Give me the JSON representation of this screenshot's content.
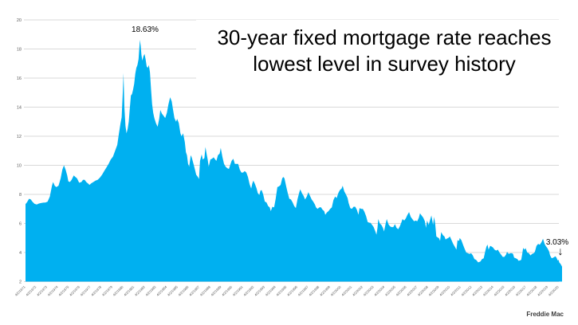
{
  "page": {
    "background": "#ffffff"
  },
  "title": {
    "line1": "30-year fixed mortgage rate reaches",
    "line2": "lowest level in survey history"
  },
  "annotations": {
    "peak": "18.63%",
    "latest": "3.03%",
    "arrow_glyph": "↓"
  },
  "source": {
    "label": "Freddie Mac"
  },
  "chart_data": {
    "type": "area",
    "title": "30-year fixed mortgage rate reaches lowest level in survey history",
    "series_name": "30-year fixed mortgage rate (%)",
    "fill_color": "#00b0f0",
    "gridline_color": "#d9d9d9",
    "tick_label_color": "#595959",
    "grid": "horizontal",
    "legend": "none",
    "ylim": [
      2,
      20
    ],
    "y_ticks": [
      20,
      18,
      16,
      14,
      12,
      10,
      8,
      6,
      4,
      2
    ],
    "xlim": [
      1971.25,
      2020.6
    ],
    "x_tick_labels": [
      "4/2/1971",
      "4/2/1972",
      "4/2/1973",
      "4/2/1974",
      "4/2/1975",
      "4/2/1976",
      "4/2/1977",
      "4/2/1978",
      "4/2/1979",
      "4/2/1980",
      "4/2/1981",
      "4/2/1982",
      "4/2/1983",
      "4/2/1984",
      "4/2/1985",
      "4/2/1986",
      "4/2/1987",
      "4/2/1988",
      "4/2/1989",
      "4/2/1990",
      "4/2/1991",
      "4/2/1992",
      "4/2/1993",
      "4/2/1994",
      "4/2/1995",
      "4/2/1996",
      "4/2/1997",
      "4/2/1998",
      "4/2/1999",
      "4/2/2000",
      "4/2/2001",
      "4/2/2002",
      "4/2/2003",
      "4/2/2004",
      "4/2/2005",
      "4/2/2006",
      "4/2/2007",
      "4/2/2008",
      "4/2/2009",
      "4/2/2010",
      "4/2/2011",
      "4/2/2012",
      "4/2/2013",
      "4/2/2014",
      "4/2/2015",
      "4/2/2016",
      "4/2/2017",
      "4/2/2018",
      "4/2/2019",
      "4/2/2020"
    ],
    "annotations": [
      {
        "text": "18.63%",
        "x": 1981.78,
        "y": 18.63
      },
      {
        "text": "3.03%",
        "x": 2020.55,
        "y": 3.03
      }
    ],
    "points": [
      [
        1971.27,
        7.33
      ],
      [
        1971.4,
        7.45
      ],
      [
        1971.6,
        7.7
      ],
      [
        1971.75,
        7.65
      ],
      [
        1971.9,
        7.5
      ],
      [
        1972.1,
        7.35
      ],
      [
        1972.3,
        7.3
      ],
      [
        1972.5,
        7.37
      ],
      [
        1972.7,
        7.4
      ],
      [
        1972.9,
        7.43
      ],
      [
        1973.1,
        7.44
      ],
      [
        1973.3,
        7.5
      ],
      [
        1973.5,
        7.85
      ],
      [
        1973.7,
        8.6
      ],
      [
        1973.8,
        8.85
      ],
      [
        1973.95,
        8.6
      ],
      [
        1974.1,
        8.5
      ],
      [
        1974.3,
        8.6
      ],
      [
        1974.5,
        9.1
      ],
      [
        1974.65,
        9.7
      ],
      [
        1974.8,
        10.0
      ],
      [
        1974.95,
        9.7
      ],
      [
        1975.1,
        9.3
      ],
      [
        1975.2,
        8.9
      ],
      [
        1975.35,
        8.85
      ],
      [
        1975.5,
        9.0
      ],
      [
        1975.7,
        9.3
      ],
      [
        1975.85,
        9.2
      ],
      [
        1976.0,
        9.1
      ],
      [
        1976.2,
        8.8
      ],
      [
        1976.4,
        8.85
      ],
      [
        1976.55,
        9.0
      ],
      [
        1976.7,
        9.0
      ],
      [
        1976.85,
        8.85
      ],
      [
        1977.0,
        8.75
      ],
      [
        1977.15,
        8.65
      ],
      [
        1977.3,
        8.75
      ],
      [
        1977.5,
        8.85
      ],
      [
        1977.7,
        8.95
      ],
      [
        1977.9,
        9.0
      ],
      [
        1978.1,
        9.15
      ],
      [
        1978.3,
        9.35
      ],
      [
        1978.5,
        9.6
      ],
      [
        1978.7,
        9.85
      ],
      [
        1978.9,
        10.1
      ],
      [
        1979.1,
        10.4
      ],
      [
        1979.3,
        10.6
      ],
      [
        1979.5,
        11.0
      ],
      [
        1979.7,
        11.4
      ],
      [
        1979.85,
        12.2
      ],
      [
        1980.0,
        12.9
      ],
      [
        1980.1,
        13.3
      ],
      [
        1980.2,
        15.0
      ],
      [
        1980.27,
        16.35
      ],
      [
        1980.35,
        14.0
      ],
      [
        1980.45,
        12.7
      ],
      [
        1980.55,
        12.2
      ],
      [
        1980.65,
        12.5
      ],
      [
        1980.75,
        13.0
      ],
      [
        1980.85,
        13.9
      ],
      [
        1980.95,
        14.8
      ],
      [
        1981.05,
        14.9
      ],
      [
        1981.15,
        15.2
      ],
      [
        1981.25,
        15.6
      ],
      [
        1981.35,
        16.3
      ],
      [
        1981.45,
        16.7
      ],
      [
        1981.55,
        16.9
      ],
      [
        1981.65,
        17.3
      ],
      [
        1981.73,
        18.1
      ],
      [
        1981.78,
        18.63
      ],
      [
        1981.85,
        18.2
      ],
      [
        1981.92,
        17.6
      ],
      [
        1982.0,
        17.2
      ],
      [
        1982.1,
        17.5
      ],
      [
        1982.2,
        17.66
      ],
      [
        1982.3,
        17.3
      ],
      [
        1982.4,
        16.8
      ],
      [
        1982.5,
        16.7
      ],
      [
        1982.6,
        16.9
      ],
      [
        1982.7,
        16.4
      ],
      [
        1982.8,
        15.2
      ],
      [
        1982.9,
        14.2
      ],
      [
        1983.0,
        13.6
      ],
      [
        1983.1,
        13.25
      ],
      [
        1983.25,
        12.9
      ],
      [
        1983.4,
        12.65
      ],
      [
        1983.55,
        13.2
      ],
      [
        1983.65,
        13.8
      ],
      [
        1983.8,
        13.55
      ],
      [
        1983.95,
        13.4
      ],
      [
        1984.1,
        13.25
      ],
      [
        1984.25,
        13.6
      ],
      [
        1984.4,
        14.2
      ],
      [
        1984.55,
        14.68
      ],
      [
        1984.7,
        14.4
      ],
      [
        1984.8,
        13.9
      ],
      [
        1984.95,
        13.25
      ],
      [
        1985.1,
        13.0
      ],
      [
        1985.2,
        13.2
      ],
      [
        1985.35,
        12.9
      ],
      [
        1985.5,
        12.2
      ],
      [
        1985.6,
        12.0
      ],
      [
        1985.75,
        12.2
      ],
      [
        1985.9,
        11.6
      ],
      [
        1986.0,
        10.9
      ],
      [
        1986.1,
        10.7
      ],
      [
        1986.2,
        10.1
      ],
      [
        1986.3,
        9.9
      ],
      [
        1986.45,
        10.7
      ],
      [
        1986.55,
        10.5
      ],
      [
        1986.7,
        10.1
      ],
      [
        1986.8,
        9.8
      ],
      [
        1986.95,
        9.35
      ],
      [
        1987.1,
        9.2
      ],
      [
        1987.2,
        9.05
      ],
      [
        1987.3,
        10.3
      ],
      [
        1987.45,
        10.75
      ],
      [
        1987.55,
        10.4
      ],
      [
        1987.7,
        10.5
      ],
      [
        1987.8,
        11.26
      ],
      [
        1987.9,
        10.8
      ],
      [
        1988.0,
        10.4
      ],
      [
        1988.1,
        9.9
      ],
      [
        1988.25,
        10.4
      ],
      [
        1988.4,
        10.45
      ],
      [
        1988.55,
        10.55
      ],
      [
        1988.7,
        10.4
      ],
      [
        1988.8,
        10.3
      ],
      [
        1988.95,
        10.7
      ],
      [
        1989.1,
        10.8
      ],
      [
        1989.2,
        11.2
      ],
      [
        1989.35,
        10.6
      ],
      [
        1989.5,
        10.1
      ],
      [
        1989.65,
        9.9
      ],
      [
        1989.8,
        9.8
      ],
      [
        1989.95,
        9.75
      ],
      [
        1990.1,
        10.1
      ],
      [
        1990.2,
        10.3
      ],
      [
        1990.35,
        10.45
      ],
      [
        1990.5,
        10.1
      ],
      [
        1990.65,
        10.1
      ],
      [
        1990.8,
        10.1
      ],
      [
        1990.95,
        9.7
      ],
      [
        1991.1,
        9.5
      ],
      [
        1991.25,
        9.5
      ],
      [
        1991.4,
        9.6
      ],
      [
        1991.55,
        9.5
      ],
      [
        1991.7,
        9.2
      ],
      [
        1991.85,
        8.7
      ],
      [
        1992.0,
        8.4
      ],
      [
        1992.1,
        8.75
      ],
      [
        1992.2,
        8.95
      ],
      [
        1992.35,
        8.7
      ],
      [
        1992.5,
        8.4
      ],
      [
        1992.6,
        8.1
      ],
      [
        1992.75,
        7.95
      ],
      [
        1992.85,
        8.25
      ],
      [
        1992.95,
        8.3
      ],
      [
        1993.1,
        8.0
      ],
      [
        1993.25,
        7.5
      ],
      [
        1993.4,
        7.45
      ],
      [
        1993.55,
        7.2
      ],
      [
        1993.7,
        7.1
      ],
      [
        1993.8,
        6.85
      ],
      [
        1993.95,
        7.15
      ],
      [
        1994.1,
        7.1
      ],
      [
        1994.25,
        7.7
      ],
      [
        1994.4,
        8.5
      ],
      [
        1994.55,
        8.55
      ],
      [
        1994.7,
        8.65
      ],
      [
        1994.85,
        9.1
      ],
      [
        1994.95,
        9.2
      ],
      [
        1995.05,
        9.1
      ],
      [
        1995.2,
        8.6
      ],
      [
        1995.35,
        8.1
      ],
      [
        1995.5,
        7.7
      ],
      [
        1995.65,
        7.65
      ],
      [
        1995.8,
        7.45
      ],
      [
        1995.95,
        7.2
      ],
      [
        1996.1,
        7.05
      ],
      [
        1996.25,
        7.65
      ],
      [
        1996.4,
        8.1
      ],
      [
        1996.5,
        8.35
      ],
      [
        1996.65,
        8.1
      ],
      [
        1996.8,
        7.9
      ],
      [
        1996.95,
        7.65
      ],
      [
        1997.1,
        7.85
      ],
      [
        1997.25,
        8.15
      ],
      [
        1997.4,
        7.9
      ],
      [
        1997.55,
        7.65
      ],
      [
        1997.7,
        7.5
      ],
      [
        1997.85,
        7.3
      ],
      [
        1997.95,
        7.1
      ],
      [
        1998.1,
        7.0
      ],
      [
        1998.25,
        7.1
      ],
      [
        1998.4,
        7.12
      ],
      [
        1998.55,
        6.95
      ],
      [
        1998.7,
        6.85
      ],
      [
        1998.8,
        6.6
      ],
      [
        1998.95,
        6.75
      ],
      [
        1999.1,
        6.85
      ],
      [
        1999.25,
        7.0
      ],
      [
        1999.4,
        7.1
      ],
      [
        1999.55,
        7.6
      ],
      [
        1999.7,
        7.85
      ],
      [
        1999.85,
        7.75
      ],
      [
        2000.0,
        8.1
      ],
      [
        2000.15,
        8.3
      ],
      [
        2000.3,
        8.4
      ],
      [
        2000.4,
        8.6
      ],
      [
        2000.55,
        8.2
      ],
      [
        2000.7,
        8.0
      ],
      [
        2000.85,
        7.75
      ],
      [
        2000.95,
        7.4
      ],
      [
        2001.1,
        7.05
      ],
      [
        2001.25,
        7.0
      ],
      [
        2001.4,
        7.15
      ],
      [
        2001.55,
        7.15
      ],
      [
        2001.7,
        6.95
      ],
      [
        2001.85,
        6.6
      ],
      [
        2001.95,
        7.05
      ],
      [
        2002.1,
        7.0
      ],
      [
        2002.25,
        7.0
      ],
      [
        2002.4,
        6.8
      ],
      [
        2002.55,
        6.5
      ],
      [
        2002.7,
        6.1
      ],
      [
        2002.85,
        6.05
      ],
      [
        2002.95,
        6.05
      ],
      [
        2003.1,
        5.9
      ],
      [
        2003.25,
        5.75
      ],
      [
        2003.4,
        5.45
      ],
      [
        2003.5,
        5.23
      ],
      [
        2003.6,
        5.7
      ],
      [
        2003.67,
        6.3
      ],
      [
        2003.8,
        6.0
      ],
      [
        2003.95,
        5.9
      ],
      [
        2004.1,
        5.7
      ],
      [
        2004.2,
        5.45
      ],
      [
        2004.35,
        6.0
      ],
      [
        2004.45,
        6.3
      ],
      [
        2004.6,
        5.95
      ],
      [
        2004.75,
        5.8
      ],
      [
        2004.9,
        5.75
      ],
      [
        2005.05,
        5.75
      ],
      [
        2005.2,
        5.95
      ],
      [
        2005.35,
        5.7
      ],
      [
        2005.5,
        5.6
      ],
      [
        2005.65,
        5.8
      ],
      [
        2005.8,
        6.1
      ],
      [
        2005.9,
        6.3
      ],
      [
        2006.05,
        6.2
      ],
      [
        2006.2,
        6.35
      ],
      [
        2006.35,
        6.6
      ],
      [
        2006.5,
        6.78
      ],
      [
        2006.65,
        6.45
      ],
      [
        2006.8,
        6.3
      ],
      [
        2006.95,
        6.15
      ],
      [
        2007.1,
        6.2
      ],
      [
        2007.25,
        6.15
      ],
      [
        2007.4,
        6.4
      ],
      [
        2007.5,
        6.7
      ],
      [
        2007.65,
        6.55
      ],
      [
        2007.8,
        6.4
      ],
      [
        2007.95,
        6.15
      ],
      [
        2008.05,
        5.7
      ],
      [
        2008.15,
        6.2
      ],
      [
        2008.3,
        5.9
      ],
      [
        2008.45,
        6.3
      ],
      [
        2008.55,
        6.55
      ],
      [
        2008.7,
        5.9
      ],
      [
        2008.8,
        6.45
      ],
      [
        2008.9,
        5.95
      ],
      [
        2009.0,
        5.1
      ],
      [
        2009.1,
        5.05
      ],
      [
        2009.25,
        4.98
      ],
      [
        2009.35,
        4.8
      ],
      [
        2009.45,
        5.4
      ],
      [
        2009.6,
        5.2
      ],
      [
        2009.75,
        5.1
      ],
      [
        2009.85,
        4.9
      ],
      [
        2009.95,
        4.95
      ],
      [
        2010.1,
        5.0
      ],
      [
        2010.25,
        5.1
      ],
      [
        2010.4,
        4.85
      ],
      [
        2010.55,
        4.6
      ],
      [
        2010.7,
        4.4
      ],
      [
        2010.85,
        4.2
      ],
      [
        2010.95,
        4.85
      ],
      [
        2011.1,
        4.8
      ],
      [
        2011.15,
        5.0
      ],
      [
        2011.3,
        4.85
      ],
      [
        2011.45,
        4.55
      ],
      [
        2011.6,
        4.25
      ],
      [
        2011.75,
        4.0
      ],
      [
        2011.9,
        3.95
      ],
      [
        2012.05,
        3.9
      ],
      [
        2012.2,
        3.95
      ],
      [
        2012.35,
        3.8
      ],
      [
        2012.5,
        3.55
      ],
      [
        2012.65,
        3.5
      ],
      [
        2012.85,
        3.32
      ],
      [
        2012.95,
        3.35
      ],
      [
        2013.05,
        3.38
      ],
      [
        2013.2,
        3.55
      ],
      [
        2013.35,
        3.6
      ],
      [
        2013.5,
        4.1
      ],
      [
        2013.6,
        4.4
      ],
      [
        2013.7,
        4.55
      ],
      [
        2013.8,
        4.2
      ],
      [
        2013.95,
        4.46
      ],
      [
        2014.05,
        4.43
      ],
      [
        2014.2,
        4.35
      ],
      [
        2014.35,
        4.2
      ],
      [
        2014.5,
        4.13
      ],
      [
        2014.65,
        4.2
      ],
      [
        2014.8,
        4.0
      ],
      [
        2014.95,
        3.86
      ],
      [
        2015.1,
        3.7
      ],
      [
        2015.25,
        3.7
      ],
      [
        2015.4,
        3.85
      ],
      [
        2015.5,
        4.05
      ],
      [
        2015.65,
        3.9
      ],
      [
        2015.8,
        3.95
      ],
      [
        2015.95,
        3.95
      ],
      [
        2016.05,
        3.9
      ],
      [
        2016.15,
        3.65
      ],
      [
        2016.3,
        3.6
      ],
      [
        2016.45,
        3.55
      ],
      [
        2016.55,
        3.43
      ],
      [
        2016.7,
        3.46
      ],
      [
        2016.8,
        3.5
      ],
      [
        2016.9,
        3.95
      ],
      [
        2016.98,
        4.32
      ],
      [
        2017.1,
        4.2
      ],
      [
        2017.2,
        4.3
      ],
      [
        2017.35,
        4.0
      ],
      [
        2017.5,
        3.96
      ],
      [
        2017.65,
        3.8
      ],
      [
        2017.8,
        3.9
      ],
      [
        2017.95,
        3.95
      ],
      [
        2018.05,
        4.05
      ],
      [
        2018.2,
        4.45
      ],
      [
        2018.35,
        4.6
      ],
      [
        2018.5,
        4.53
      ],
      [
        2018.65,
        4.7
      ],
      [
        2018.8,
        4.94
      ],
      [
        2018.95,
        4.6
      ],
      [
        2019.05,
        4.45
      ],
      [
        2019.2,
        4.3
      ],
      [
        2019.35,
        4.1
      ],
      [
        2019.45,
        3.8
      ],
      [
        2019.6,
        3.6
      ],
      [
        2019.75,
        3.65
      ],
      [
        2019.85,
        3.7
      ],
      [
        2019.95,
        3.74
      ],
      [
        2020.05,
        3.62
      ],
      [
        2020.15,
        3.45
      ],
      [
        2020.22,
        3.5
      ],
      [
        2020.3,
        3.31
      ],
      [
        2020.4,
        3.23
      ],
      [
        2020.48,
        3.13
      ],
      [
        2020.55,
        3.03
      ]
    ]
  }
}
